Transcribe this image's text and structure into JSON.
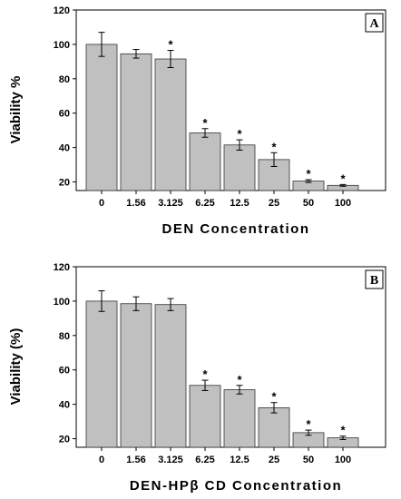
{
  "chart_data": [
    {
      "type": "bar",
      "panel_label": "A",
      "xlabel": "DEN Concentration",
      "ylabel": "Viability %",
      "categories": [
        "0",
        "1.56",
        "3.125",
        "6.25",
        "12.5",
        "25",
        "50",
        "100"
      ],
      "values": [
        100,
        94.5,
        91.5,
        48.5,
        41.5,
        33,
        20.5,
        18
      ],
      "errors": [
        7,
        2.5,
        5,
        2.5,
        3,
        4,
        0.8,
        0.5
      ],
      "significant": [
        false,
        false,
        true,
        true,
        true,
        true,
        true,
        true
      ],
      "significance_mark": "*",
      "ylim": [
        15,
        120
      ],
      "yticks": [
        20,
        40,
        60,
        80,
        100,
        120
      ],
      "bar_color": "#c0c0c0"
    },
    {
      "type": "bar",
      "panel_label": "B",
      "xlabel": "DEN-HPβ CD Concentration",
      "ylabel": "Viability (%)",
      "categories": [
        "0",
        "1.56",
        "3.125",
        "6.25",
        "12.5",
        "25",
        "50",
        "100"
      ],
      "values": [
        100,
        98.5,
        98,
        51,
        48.5,
        38,
        23.5,
        20.5
      ],
      "errors": [
        6,
        4,
        3.5,
        3,
        2.5,
        3,
        1.5,
        1
      ],
      "significant": [
        false,
        false,
        false,
        true,
        true,
        true,
        true,
        true
      ],
      "significance_mark": "*",
      "ylim": [
        15,
        120
      ],
      "yticks": [
        20,
        40,
        60,
        80,
        100,
        120
      ],
      "bar_color": "#c0c0c0"
    }
  ]
}
